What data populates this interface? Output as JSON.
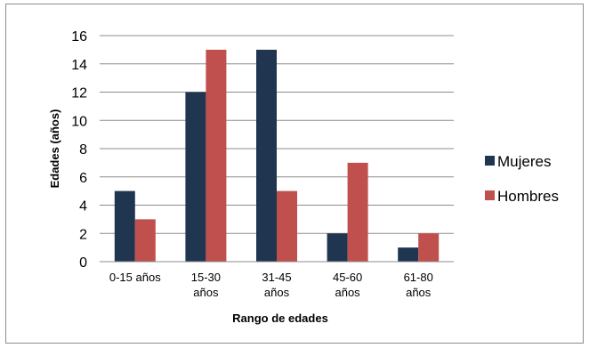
{
  "chart_data": {
    "type": "bar",
    "categories": [
      "0-15 años",
      "15-30 años",
      "31-45 años",
      "45-60 años",
      "61-80 años"
    ],
    "category_lines": [
      [
        "0-15 años"
      ],
      [
        "15-30",
        "años"
      ],
      [
        "31-45",
        "años"
      ],
      [
        "45-60",
        "años"
      ],
      [
        "61-80",
        "años"
      ]
    ],
    "series": [
      {
        "name": "Mujeres",
        "color": "#1f3550",
        "values": [
          5,
          12,
          15,
          2,
          1
        ]
      },
      {
        "name": "Hombres",
        "color": "#c0504d",
        "values": [
          3,
          15,
          5,
          7,
          2
        ]
      }
    ],
    "xlabel": "Rango de edades",
    "ylabel": "Edades (años)",
    "ylim": [
      0,
      16
    ],
    "yticks": [
      0,
      2,
      4,
      6,
      8,
      10,
      12,
      14,
      16
    ],
    "grid": true,
    "legend_position": "right"
  }
}
